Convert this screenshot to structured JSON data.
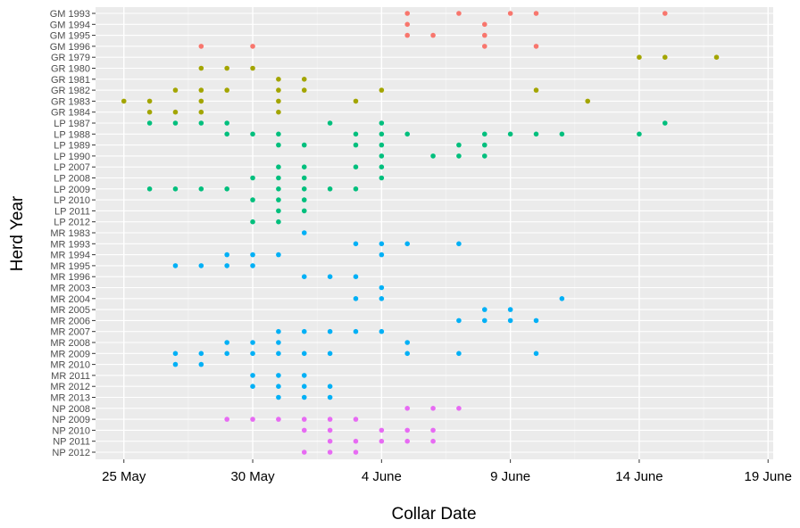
{
  "chart_data": {
    "type": "scatter",
    "xlabel": "Collar Date",
    "ylabel": "Herd Year",
    "x_ticks": [
      {
        "day": 0,
        "label": "25 May"
      },
      {
        "day": 5,
        "label": "30 May"
      },
      {
        "day": 10,
        "label": "4 June"
      },
      {
        "day": 15,
        "label": "9 June"
      },
      {
        "day": 20,
        "label": "14 June"
      },
      {
        "day": 25,
        "label": "19 June"
      }
    ],
    "xlim": [
      -1.1,
      25.2
    ],
    "grid": true,
    "legend": "none",
    "colors": {
      "GM": "#F8766D",
      "GR": "#A3A500",
      "LP": "#00BF7D",
      "MR": "#00B0F6",
      "NP": "#E76BF3"
    },
    "categories": [
      "GM 1993",
      "GM 1994",
      "GM 1995",
      "GM 1996",
      "GR 1979",
      "GR 1980",
      "GR 1981",
      "GR 1982",
      "GR 1983",
      "GR 1984",
      "LP 1987",
      "LP 1988",
      "LP 1989",
      "LP 1990",
      "LP 2007",
      "LP 2008",
      "LP 2009",
      "LP 2010",
      "LP 2011",
      "LP 2012",
      "MR 1983",
      "MR 1993",
      "MR 1994",
      "MR 1995",
      "MR 1996",
      "MR 2003",
      "MR 2004",
      "MR 2005",
      "MR 2006",
      "MR 2007",
      "MR 2008",
      "MR 2009",
      "MR 2010",
      "MR 2011",
      "MR 2012",
      "MR 2013",
      "NP 2008",
      "NP 2009",
      "NP 2010",
      "NP 2011",
      "NP 2012"
    ],
    "points": {
      "GM 1993": [
        11,
        13,
        15,
        16,
        21
      ],
      "GM 1994": [
        11,
        14
      ],
      "GM 1995": [
        11,
        12,
        14
      ],
      "GM 1996": [
        3,
        5,
        14,
        16
      ],
      "GR 1979": [
        20,
        21,
        23
      ],
      "GR 1980": [
        3,
        4,
        5
      ],
      "GR 1981": [
        6,
        7
      ],
      "GR 1982": [
        2,
        3,
        4,
        6,
        7,
        10,
        16
      ],
      "GR 1983": [
        0,
        1,
        3,
        6,
        9,
        18
      ],
      "GR 1984": [
        1,
        2,
        3,
        6
      ],
      "LP 1987": [
        1,
        2,
        3,
        4,
        8,
        10,
        21
      ],
      "LP 1988": [
        4,
        5,
        6,
        9,
        10,
        11,
        14,
        15,
        16,
        17,
        20
      ],
      "LP 1989": [
        6,
        7,
        9,
        10,
        13,
        14
      ],
      "LP 1990": [
        10,
        12,
        13,
        14
      ],
      "LP 2007": [
        6,
        7,
        9,
        10
      ],
      "LP 2008": [
        5,
        6,
        7,
        10
      ],
      "LP 2009": [
        1,
        2,
        3,
        4,
        6,
        7,
        8,
        9
      ],
      "LP 2010": [
        5,
        6,
        7
      ],
      "LP 2011": [
        6,
        7
      ],
      "LP 2012": [
        5,
        6
      ],
      "MR 1983": [
        7
      ],
      "MR 1993": [
        9,
        10,
        11,
        13
      ],
      "MR 1994": [
        4,
        5,
        6,
        10
      ],
      "MR 1995": [
        2,
        3,
        4,
        5
      ],
      "MR 1996": [
        7,
        8,
        9
      ],
      "MR 2003": [
        10
      ],
      "MR 2004": [
        9,
        10,
        17
      ],
      "MR 2005": [
        14,
        15
      ],
      "MR 2006": [
        13,
        14,
        15,
        16
      ],
      "MR 2007": [
        6,
        7,
        8,
        9,
        10
      ],
      "MR 2008": [
        4,
        5,
        6,
        11
      ],
      "MR 2009": [
        2,
        3,
        4,
        5,
        6,
        7,
        8,
        11,
        13,
        16
      ],
      "MR 2010": [
        2,
        3
      ],
      "MR 2011": [
        5,
        6,
        7
      ],
      "MR 2012": [
        5,
        6,
        7,
        8
      ],
      "MR 2013": [
        6,
        7,
        8
      ],
      "NP 2008": [
        11,
        12,
        13
      ],
      "NP 2009": [
        4,
        5,
        6,
        7,
        8,
        9
      ],
      "NP 2010": [
        7,
        8,
        10,
        11,
        12
      ],
      "NP 2011": [
        8,
        9,
        10,
        11,
        12
      ],
      "NP 2012": [
        7,
        8,
        9
      ]
    }
  }
}
